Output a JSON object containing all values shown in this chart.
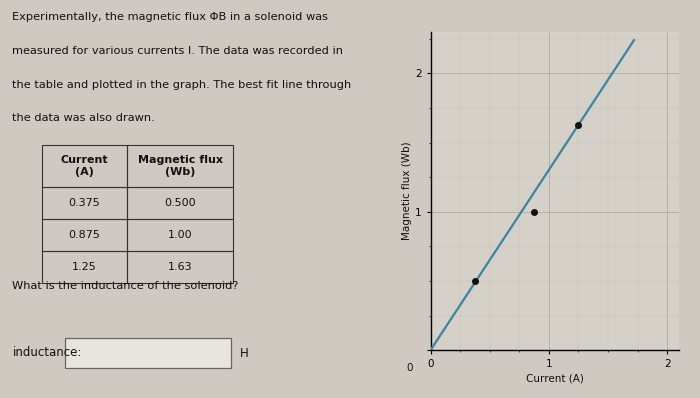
{
  "para_text_lines": [
    "Experimentally, the magnetic flux ΦB in a solenoid was",
    "measured for various currents I. The data was recorded in",
    "the table and plotted in the graph. The best fit line through",
    "the data was also drawn."
  ],
  "table_col_headers": [
    "Current\n(A)",
    "Magnetic flux\n(Wb)"
  ],
  "table_data": [
    [
      "0.375",
      "0.500"
    ],
    [
      "0.875",
      "1.00"
    ],
    [
      "1.25",
      "1.63"
    ]
  ],
  "scatter_x": [
    0.375,
    0.875,
    1.25
  ],
  "scatter_y": [
    0.5,
    1.0,
    1.63
  ],
  "fit_x": [
    0.0,
    1.72
  ],
  "fit_y": [
    0.0,
    2.24
  ],
  "xlabel": "Current (A)",
  "ylabel": "Magnetic flux (Wb)",
  "xlim": [
    0,
    2.1
  ],
  "ylim": [
    0,
    2.3
  ],
  "xticks": [
    0,
    1,
    2
  ],
  "yticks": [
    0,
    1,
    2
  ],
  "question_text": "What is the inductance of the solenoid?",
  "answer_label": "inductance:",
  "answer_unit": "H",
  "bg_color": "#cfc9c1",
  "plot_bg_color": "#d5d0c8",
  "line_color": "#3a85a0",
  "scatter_color": "#111111",
  "grid_color": "#b8b0a5",
  "grid_minor_color": "#c8c0b8",
  "text_color": "#111111",
  "table_border_color": "#333333",
  "answer_box_color": "#e8e4de"
}
